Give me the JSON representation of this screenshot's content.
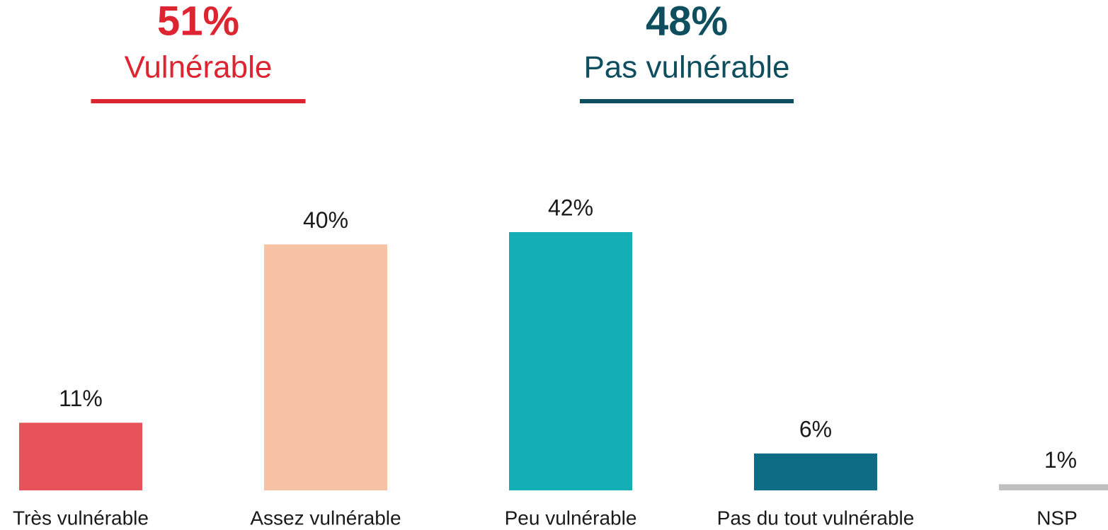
{
  "chart_data": {
    "type": "bar",
    "groups": [
      {
        "total": "51%",
        "label": "Vulnérable",
        "color": "#dc2530"
      },
      {
        "total": "48%",
        "label": "Pas vulnérable",
        "color": "#0e4e5e"
      }
    ],
    "categories": [
      "Très vulnérable",
      "Assez vulnérable",
      "Peu vulnérable",
      "Pas du tout vulnérable",
      "NSP"
    ],
    "values": [
      11,
      40,
      42,
      6,
      1
    ],
    "value_labels": [
      "11%",
      "40%",
      "42%",
      "6%",
      "1%"
    ],
    "colors": [
      "#e8525a",
      "#f7c3a4",
      "#14aeb6",
      "#0e6c84",
      "#c0c0c0"
    ]
  }
}
